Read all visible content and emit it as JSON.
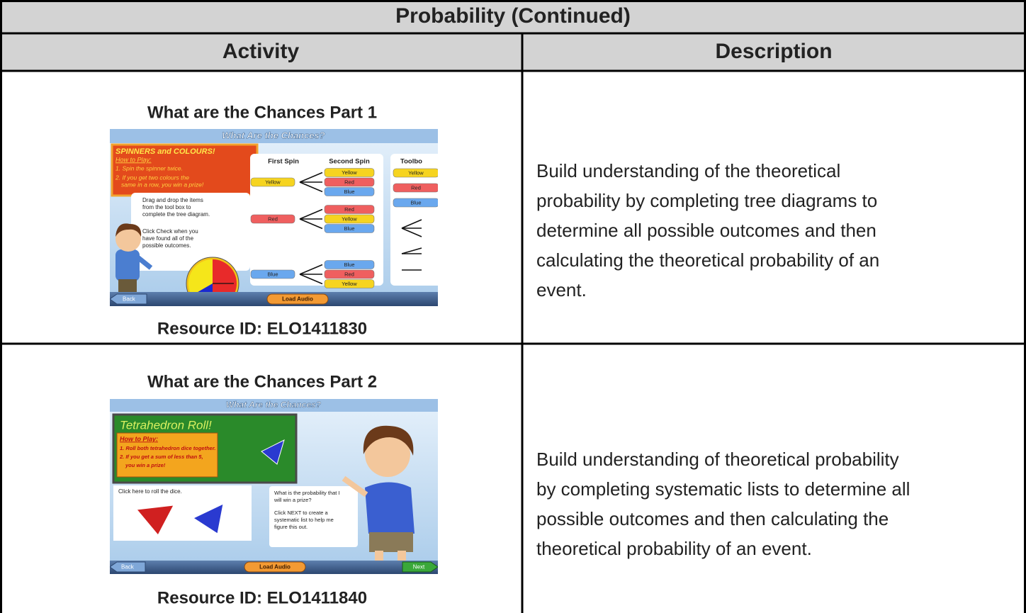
{
  "table": {
    "title": "Probability (Continued)",
    "headers": [
      "Activity",
      "Description"
    ],
    "rows": [
      {
        "activity": "What are the Chances Part 1",
        "resource_id": "Resource ID: ELO1411830",
        "description": [
          "Build understanding of the theoretical",
          "probability by completing tree diagrams to",
          "determine all possible outcomes and then",
          "calculating the theoretical probability of an",
          "event."
        ],
        "screen": {
          "title": "What Are the Chances?",
          "heading": "SPINNERS and COLOURS!",
          "how_to": "How to Play:",
          "steps": [
            "1. Spin the spinner twice.",
            "2. If you get two colours the",
            "same in a row, you win a prize!"
          ],
          "instructions": [
            [
              "Drag and drop the items",
              "from the tool box to",
              "complete the tree diagram."
            ],
            [
              "Click Check when you",
              "have found all of the",
              "possible outcomes."
            ]
          ],
          "columns": [
            "First Spin",
            "Second Spin"
          ],
          "branches": [
            {
              "label": "Yellow",
              "outcomes": [
                "Yellow",
                "Red",
                "Blue"
              ]
            },
            {
              "label": "Red",
              "outcomes": [
                "Red",
                "Yellow",
                "Blue"
              ]
            },
            {
              "label": "Blue",
              "outcomes": [
                "Blue",
                "Red",
                "Yellow"
              ]
            }
          ],
          "toolbox": {
            "title": "Toolbo",
            "items": [
              "Yellow",
              "Red",
              "Blue"
            ]
          },
          "buttons": [
            "Back",
            "Load Audio"
          ]
        }
      },
      {
        "activity": "What are the Chances Part 2",
        "resource_id": "Resource ID: ELO1411840",
        "description": [
          "Build understanding of theoretical probability",
          "by completing systematic lists to determine all",
          "possible outcomes and then calculating the",
          "theoretical probability of an event."
        ],
        "screen": {
          "title": "What Are the Chances?",
          "heading": "Tetrahedron Roll!",
          "how_to": "How to Play:",
          "steps": [
            "1. Roll both tetrahedron dice together.",
            "2. If you get a sum of less than 5,",
            "you win a prize!"
          ],
          "roll": "Click here to roll the dice.",
          "speech": [
            [
              "What is the probability that I",
              "will win a prize?"
            ],
            [
              "Click NEXT to create a",
              "systematic list to help me",
              "figure this out."
            ]
          ],
          "buttons": [
            "Back",
            "Load Audio",
            "Next"
          ]
        }
      }
    ]
  }
}
